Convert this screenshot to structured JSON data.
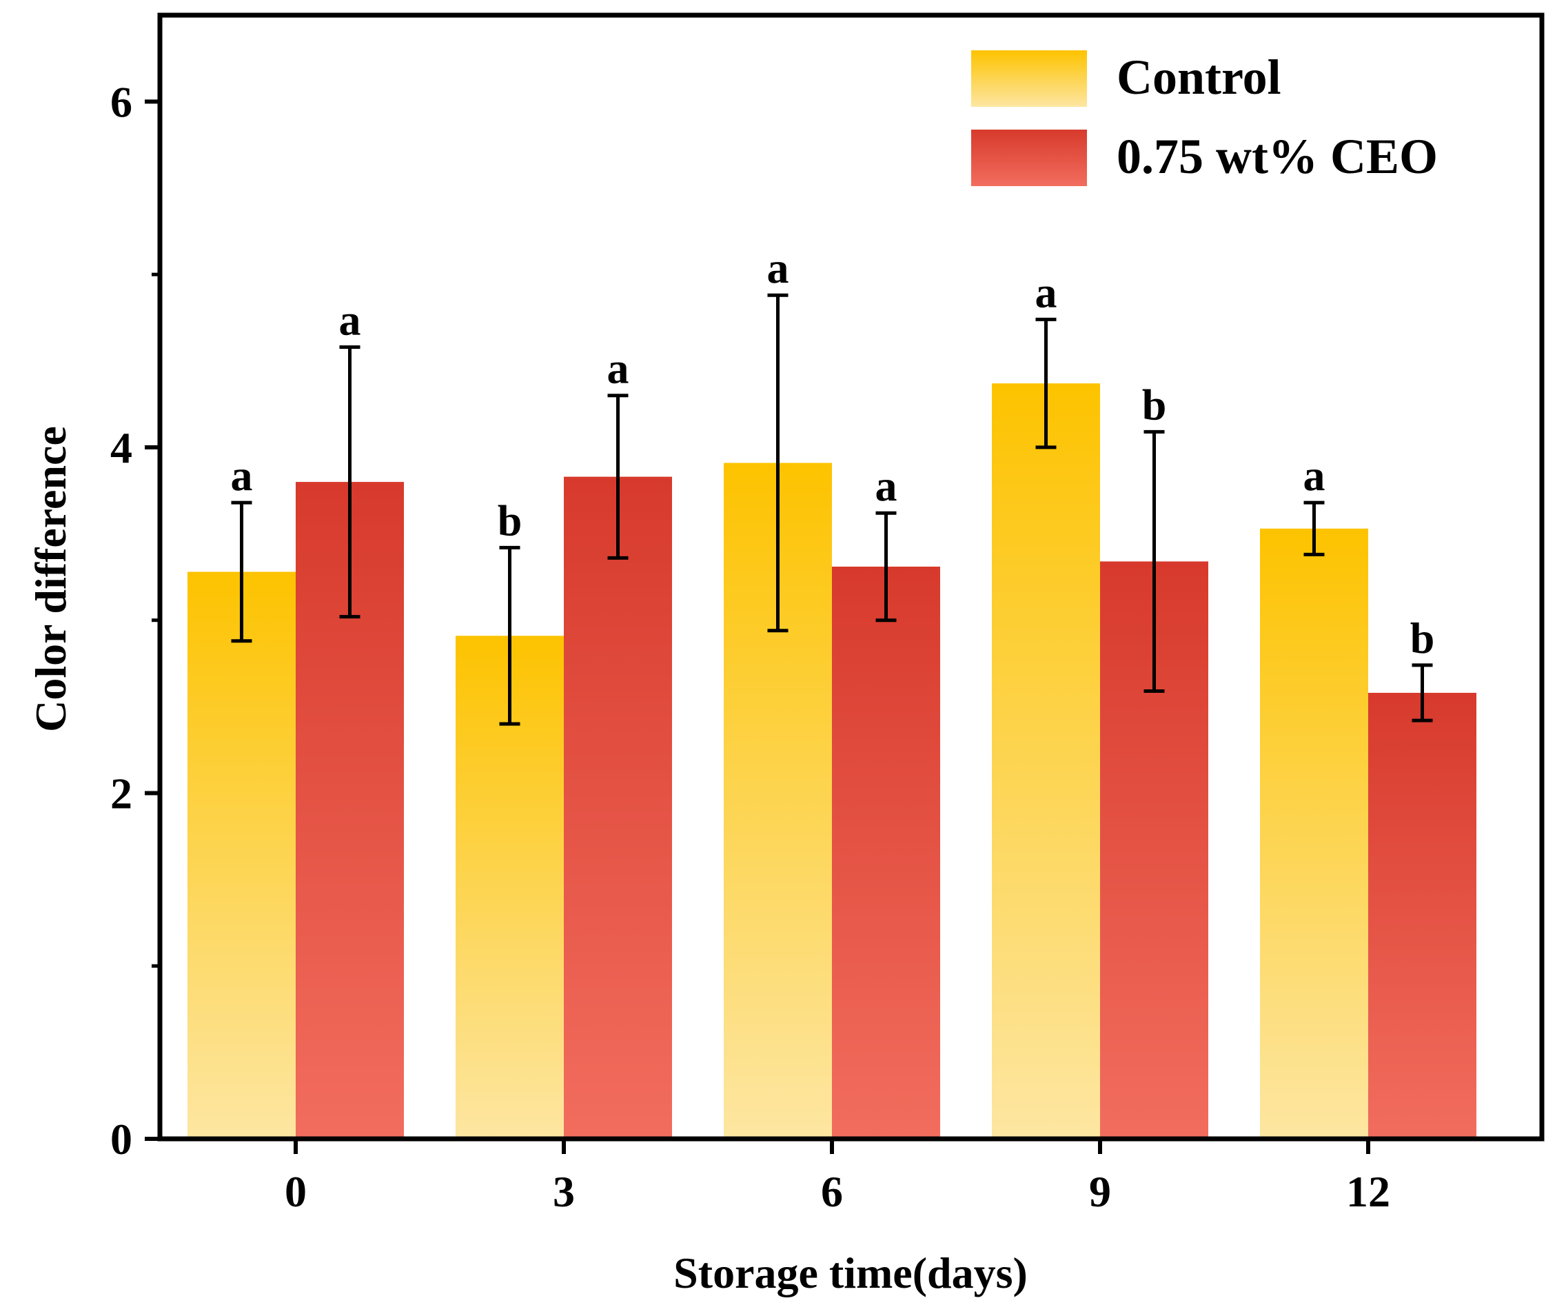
{
  "chart_data": {
    "type": "bar",
    "xlabel": "Storage time(days)",
    "ylabel": "Color difference",
    "categories": [
      "0",
      "3",
      "6",
      "9",
      "12"
    ],
    "ylim": [
      0,
      6.5
    ],
    "yticks": [
      0,
      2,
      4,
      6
    ],
    "yticks_minor": [
      1,
      3,
      5
    ],
    "grid": false,
    "legend_position": "top-right",
    "series": [
      {
        "name": "Control",
        "values": [
          3.28,
          2.91,
          3.91,
          4.37,
          3.53
        ],
        "errors": [
          0.4,
          0.51,
          0.97,
          0.37,
          0.15
        ],
        "labels": [
          "a",
          "b",
          "a",
          "a",
          "a"
        ],
        "color_top": "#FDC300",
        "color_bottom": "#FDE6A2"
      },
      {
        "name": "0.75 wt% CEO",
        "values": [
          3.8,
          3.83,
          3.31,
          3.34,
          2.58
        ],
        "errors": [
          0.78,
          0.47,
          0.31,
          0.75,
          0.16
        ],
        "labels": [
          "a",
          "a",
          "a",
          "b",
          "b"
        ],
        "color_top": "#D73A2C",
        "color_bottom": "#F26D5E"
      }
    ]
  }
}
